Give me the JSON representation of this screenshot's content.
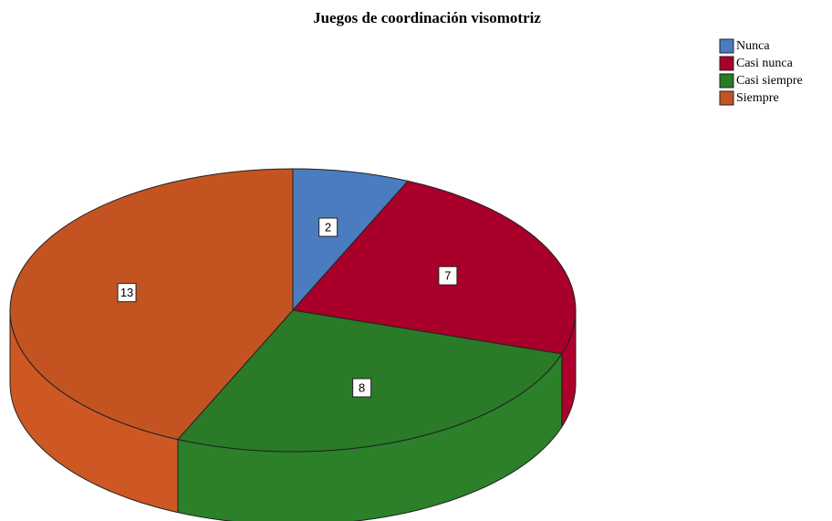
{
  "chart_data": {
    "type": "pie",
    "title": "Juegos de coordinación visomotriz",
    "categories": [
      "Nunca",
      "Casi nunca",
      "Casi siempre",
      "Siempre"
    ],
    "values": [
      2,
      7,
      8,
      13
    ],
    "colors": [
      "#4a7cbf",
      "#a8002a",
      "#2a7a28",
      "#c35422"
    ],
    "legend": "top-right"
  }
}
